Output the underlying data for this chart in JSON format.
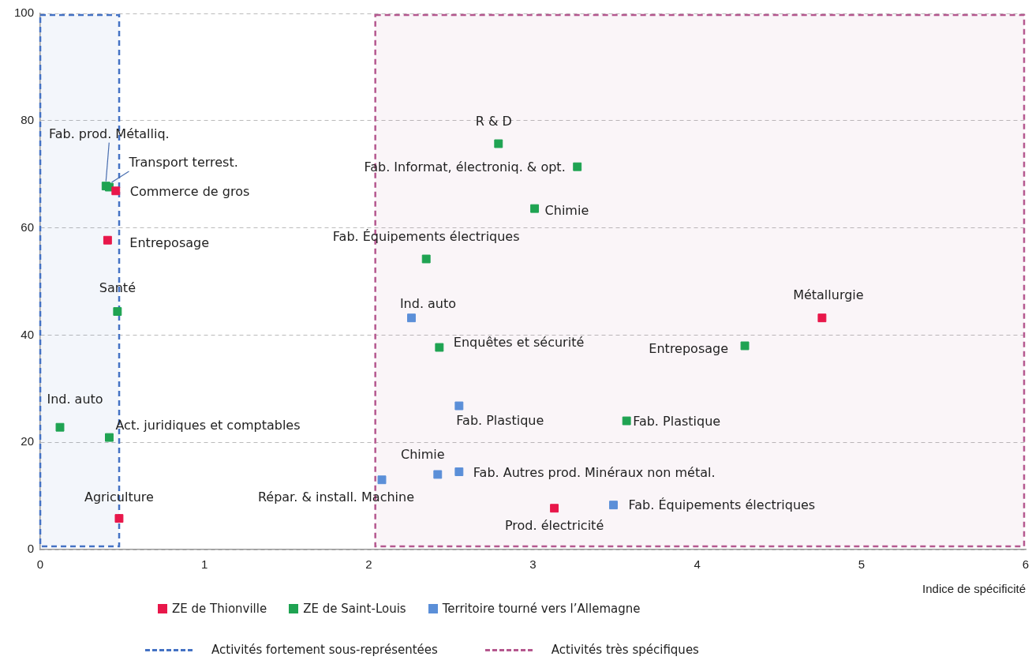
{
  "chart_data": {
    "type": "scatter",
    "xlabel": "Indice de spécificité",
    "xlim": [
      0,
      6
    ],
    "xticks": [
      0,
      1,
      2,
      3,
      4,
      5,
      6
    ],
    "ylim": [
      0,
      100
    ],
    "yticks": [
      0,
      20,
      40,
      60,
      80,
      100
    ],
    "grid": "y",
    "legend": "bottom",
    "marker": "square",
    "series": [
      {
        "name": "ZE de Thionville",
        "color": "#e8174a",
        "x": [
          0.46,
          0.41,
          0.48,
          4.76,
          3.13
        ],
        "values": [
          66.9,
          57.7,
          5.8,
          43.2,
          7.7
        ]
      },
      {
        "name": "ZE de Saint-Louis",
        "color": "#1fa352",
        "x": [
          0.4,
          0.42,
          0.47,
          0.12,
          0.42,
          2.79,
          3.27,
          3.01,
          2.35,
          2.43,
          4.29,
          3.57
        ],
        "values": [
          67.8,
          67.6,
          44.4,
          22.8,
          20.9,
          75.7,
          71.4,
          63.6,
          54.2,
          37.7,
          38.0,
          24.0
        ]
      },
      {
        "name": "Territoire tourné vers l’Allemagne",
        "color": "#5b8fd8",
        "x": [
          2.26,
          2.55,
          2.42,
          2.55,
          2.08,
          3.49
        ],
        "values": [
          43.2,
          26.8,
          14.0,
          14.5,
          13.0,
          8.3
        ]
      }
    ],
    "bands": [
      {
        "axis": "x",
        "from": 0,
        "to": 0.49,
        "label": "Activités fortement sous-représentées",
        "color": "#4472c4"
      },
      {
        "axis": "x",
        "from": 2.04,
        "to": 6,
        "label": "Activités très spécifiques",
        "color": "#b5588f"
      }
    ],
    "annotations": [
      {
        "text": "Commerce de gros",
        "x": 0.46,
        "y": 66.9
      },
      {
        "text": "Entreposage",
        "x": 0.41,
        "y": 57.7
      },
      {
        "text": "Agriculture",
        "x": 0.48,
        "y": 5.8
      },
      {
        "text": "Métallurgie",
        "x": 4.76,
        "y": 43.2
      },
      {
        "text": "Prod. électricité",
        "x": 3.13,
        "y": 7.7
      },
      {
        "text": "Fab. prod. Métalliq.",
        "x": 0.4,
        "y": 67.8
      },
      {
        "text": "Transport terrest.",
        "x": 0.42,
        "y": 67.6
      },
      {
        "text": "Santé",
        "x": 0.47,
        "y": 44.4
      },
      {
        "text": "Ind. auto",
        "x": 0.12,
        "y": 22.8
      },
      {
        "text": "Act. juridiques et comptables",
        "x": 0.42,
        "y": 20.9
      },
      {
        "text": "R & D",
        "x": 2.79,
        "y": 75.7
      },
      {
        "text": "Fab. Informat, électroniq. & opt.",
        "x": 3.27,
        "y": 71.4
      },
      {
        "text": "Chimie",
        "x": 3.01,
        "y": 63.6
      },
      {
        "text": "Fab. Équipements électriques",
        "x": 2.35,
        "y": 54.2
      },
      {
        "text": "Enquêtes et sécurité",
        "x": 2.43,
        "y": 37.7
      },
      {
        "text": "Entreposage",
        "x": 4.29,
        "y": 38.0
      },
      {
        "text": "Fab. Plastique",
        "x": 3.57,
        "y": 24.0
      },
      {
        "text": "Ind. auto",
        "x": 2.26,
        "y": 43.2
      },
      {
        "text": "Fab. Plastique",
        "x": 2.55,
        "y": 26.8
      },
      {
        "text": "Chimie",
        "x": 2.42,
        "y": 14.0
      },
      {
        "text": "Fab. Autres prod. Minéraux non métal.",
        "x": 2.55,
        "y": 14.5
      },
      {
        "text": "Répar. & install. Machine",
        "x": 2.08,
        "y": 13.0
      },
      {
        "text": "Fab. Équipements électriques",
        "x": 3.49,
        "y": 8.3
      }
    ]
  }
}
